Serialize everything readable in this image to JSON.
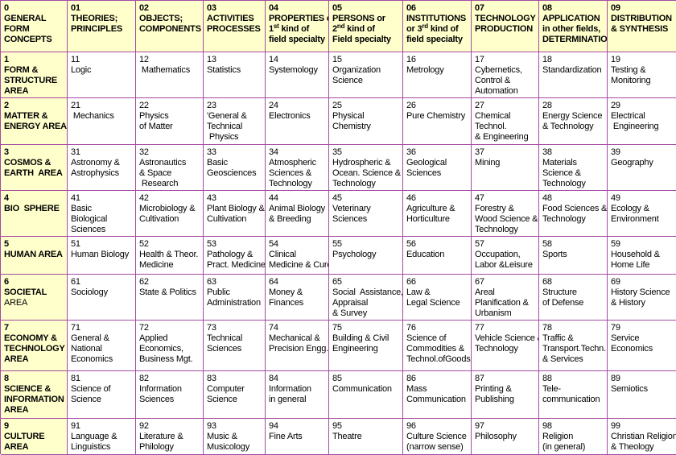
{
  "header": {
    "cells": [
      {
        "number": "0",
        "lines": [
          "GENERAL",
          "FORM",
          "CONCEPTS"
        ]
      },
      {
        "number": "01",
        "lines": [
          "THEORIES;",
          "PRINCIPLES"
        ]
      },
      {
        "number": "02",
        "lines": [
          "OBJECTS;",
          "COMPONENTS"
        ]
      },
      {
        "number": "03",
        "lines": [
          "ACTIVITIES",
          "PROCESSES"
        ]
      },
      {
        "number": "04",
        "lines": [
          "PROPERTIES or",
          {
            "base": "1",
            "sup": "st",
            "after": " kind of"
          },
          "field specialty"
        ]
      },
      {
        "number": "05",
        "lines": [
          "PERSONS or",
          {
            "base": "2",
            "sup": "nd",
            "after": " kind of"
          },
          "Field specialty"
        ]
      },
      {
        "number": "06",
        "lines": [
          "INSTITUTIONS",
          {
            "base": "or 3",
            "sup": "rd",
            "after": " kind of"
          },
          "field specialty"
        ]
      },
      {
        "number": "07",
        "lines": [
          "TECHNOLOGY &",
          "PRODUCTION"
        ]
      },
      {
        "number": "08",
        "lines": [
          "APPLICATION",
          "in other fields,",
          "DETERMINATION"
        ]
      },
      {
        "number": "09",
        "lines": [
          "DISTRIBUTION",
          "& SYNTHESIS"
        ]
      }
    ]
  },
  "rows": [
    {
      "label": {
        "number": "1",
        "lines": [
          "FORM &",
          "STRUCTURE",
          "AREA"
        ]
      },
      "cells": [
        {
          "number": "11",
          "lines": [
            "Logic"
          ]
        },
        {
          "number": "12",
          "lines": [
            " Mathematics"
          ]
        },
        {
          "number": "13",
          "lines": [
            "Statistics"
          ]
        },
        {
          "number": "14",
          "lines": [
            "Systemology"
          ]
        },
        {
          "number": "15",
          "lines": [
            "Organization",
            "Science"
          ]
        },
        {
          "number": "16",
          "lines": [
            "Metrology"
          ]
        },
        {
          "number": "17",
          "lines": [
            "Cybernetics,",
            "Control &",
            "Automation"
          ]
        },
        {
          "number": "18",
          "lines": [
            "Standardization"
          ]
        },
        {
          "number": "19",
          "lines": [
            "Testing &",
            "Monitoring"
          ]
        }
      ]
    },
    {
      "label": {
        "number": "2",
        "lines": [
          "MATTER &",
          "ENERGY AREA"
        ]
      },
      "cells": [
        {
          "number": "21",
          "lines": [
            " Mechanics"
          ]
        },
        {
          "number": "22",
          "lines": [
            "Physics",
            "of Matter"
          ]
        },
        {
          "number": "23",
          "lines": [
            "'General &",
            "Technical",
            " Physics"
          ]
        },
        {
          "number": "24",
          "lines": [
            "Electronics"
          ]
        },
        {
          "number": "25",
          "lines": [
            "Physical",
            "Chemistry"
          ]
        },
        {
          "number": "26",
          "lines": [
            "Pure Chemistry"
          ]
        },
        {
          "number": "27",
          "lines": [
            "Chemical",
            "Technol.",
            "& Engineering"
          ]
        },
        {
          "number": "28",
          "lines": [
            "Energy Science",
            "& Technology"
          ]
        },
        {
          "number": "29",
          "lines": [
            "Electrical",
            " Engineering"
          ]
        }
      ]
    },
    {
      "label": {
        "number": "3",
        "lines": [
          "COSMOS &",
          "EARTH  AREA"
        ]
      },
      "cells": [
        {
          "number": "31",
          "lines": [
            "Astronomy &",
            "Astrophysics"
          ]
        },
        {
          "number": "32",
          "lines": [
            "Astronautics",
            "& Space",
            " Research"
          ]
        },
        {
          "number": "33",
          "lines": [
            "Basic",
            "Geosciences"
          ]
        },
        {
          "number": "34",
          "lines": [
            "Atmospheric",
            "Sciences &",
            "Technology"
          ]
        },
        {
          "number": "35",
          "lines": [
            "Hydrospheric &",
            "Ocean. Science &",
            "Technology"
          ]
        },
        {
          "number": "36",
          "lines": [
            "Geological",
            "Sciences"
          ]
        },
        {
          "number": "37",
          "lines": [
            "Mining"
          ]
        },
        {
          "number": "38",
          "lines": [
            "Materials",
            "Science &",
            "Technology"
          ]
        },
        {
          "number": "39",
          "lines": [
            "Geography"
          ]
        }
      ]
    },
    {
      "label": {
        "number": "4",
        "lines": [
          "BIO  SPHERE"
        ]
      },
      "cells": [
        {
          "number": "41",
          "lines": [
            "Basic",
            "Biological",
            "Sciences"
          ]
        },
        {
          "number": "42",
          "lines": [
            "Microbiology &",
            "Cultivation"
          ]
        },
        {
          "number": "43",
          "lines": [
            "Plant Biology &",
            "Cultivation"
          ]
        },
        {
          "number": "44",
          "lines": [
            "Animal Biology",
            "& Breeding"
          ]
        },
        {
          "number": "45",
          "lines": [
            "Veterinary",
            "Sciences"
          ]
        },
        {
          "number": "46",
          "lines": [
            "Agriculture &",
            "Horticulture"
          ]
        },
        {
          "number": "47",
          "lines": [
            "Forestry &",
            "Wood Science &",
            "Technology"
          ]
        },
        {
          "number": "48",
          "lines": [
            "Food Sciences &",
            "Technology"
          ]
        },
        {
          "number": "49",
          "lines": [
            "Ecology &",
            "Environment"
          ]
        }
      ]
    },
    {
      "label": {
        "number": "5",
        "lines": [
          "HUMAN AREA"
        ]
      },
      "cells": [
        {
          "number": "51",
          "lines": [
            "Human Biology"
          ]
        },
        {
          "number": "52",
          "lines": [
            "Health & Theor.",
            "Medicine"
          ]
        },
        {
          "number": "53",
          "lines": [
            "Pathology &",
            "Pract. Medicine"
          ]
        },
        {
          "number": "54",
          "lines": [
            "Clinical",
            "Medicine & Cure"
          ]
        },
        {
          "number": "55",
          "lines": [
            "Psychology"
          ]
        },
        {
          "number": "56",
          "lines": [
            "Education"
          ]
        },
        {
          "number": "57",
          "lines": [
            "Occupation,",
            "Labor &Leisure"
          ]
        },
        {
          "number": "58",
          "lines": [
            "Sports"
          ]
        },
        {
          "number": "59",
          "lines": [
            "Household &",
            "Home Life"
          ]
        }
      ]
    },
    {
      "label": {
        "number": "6",
        "lines": [
          "SOCIETAL"
        ],
        "plain_lines": [
          "AREA"
        ]
      },
      "cells": [
        {
          "number": "61",
          "lines": [
            "Sociology"
          ]
        },
        {
          "number": "62",
          "lines": [
            "State & Politics"
          ]
        },
        {
          "number": "63",
          "lines": [
            "Public",
            "Administration"
          ]
        },
        {
          "number": "64",
          "lines": [
            "Money &",
            "Finances"
          ]
        },
        {
          "number": "65",
          "lines": [
            "Social  Assistance,",
            "Appraisal",
            "& Survey"
          ]
        },
        {
          "number": "66",
          "lines": [
            "Law &",
            "Legal Science"
          ]
        },
        {
          "number": "67",
          "lines": [
            "Areal",
            "Planification &",
            "Urbanism"
          ]
        },
        {
          "number": "68",
          "lines": [
            "Structure",
            "of Defense"
          ]
        },
        {
          "number": "69",
          "lines": [
            "History Science",
            "& History"
          ]
        }
      ]
    },
    {
      "label": {
        "number": "7",
        "lines": [
          "ECONOMY &",
          "TECHNOLOGY",
          "AREA"
        ]
      },
      "cells": [
        {
          "number": "71",
          "lines": [
            "General &",
            "National",
            "Economics"
          ]
        },
        {
          "number": "72",
          "lines": [
            "Applied",
            "Economics,",
            "Business Mgt."
          ]
        },
        {
          "number": "73",
          "lines": [
            "Technical",
            "Sciences"
          ]
        },
        {
          "number": "74",
          "lines": [
            "Mechanical &",
            "Precision Engg."
          ]
        },
        {
          "number": "75",
          "lines": [
            "Building & Civil",
            "Engineering"
          ]
        },
        {
          "number": "76",
          "lines": [
            "Science of",
            "Commodities &",
            "Technol.ofGoods"
          ]
        },
        {
          "number": "77",
          "lines": [
            "Vehicle Science &",
            "Technology"
          ]
        },
        {
          "number": "78",
          "lines": [
            "Traffic &",
            "Transport.Techn.",
            "& Services"
          ]
        },
        {
          "number": "79",
          "lines": [
            "Service",
            "Economics"
          ]
        }
      ]
    },
    {
      "label": {
        "number": "8",
        "lines": [
          "SCIENCE &",
          "INFORMATION",
          "AREA"
        ]
      },
      "cells": [
        {
          "number": "81",
          "lines": [
            "Science of",
            "Science"
          ]
        },
        {
          "number": "82",
          "lines": [
            "Information",
            "Sciences"
          ]
        },
        {
          "number": "83",
          "lines": [
            "Computer",
            "Science"
          ]
        },
        {
          "number": "84",
          "lines": [
            "Information",
            "in general"
          ]
        },
        {
          "number": "85",
          "lines": [
            "Communication"
          ]
        },
        {
          "number": "86",
          "lines": [
            "Mass",
            "Communication"
          ]
        },
        {
          "number": "87",
          "lines": [
            "Printing &",
            "Publishing"
          ]
        },
        {
          "number": "88",
          "lines": [
            "Tele-",
            "communication"
          ]
        },
        {
          "number": "89",
          "lines": [
            "Semiotics"
          ]
        }
      ]
    },
    {
      "label": {
        "number": "9",
        "lines": [
          "CULTURE",
          "AREA"
        ]
      },
      "cells": [
        {
          "number": "91",
          "lines": [
            "Language &",
            "Linguistics"
          ]
        },
        {
          "number": "92",
          "lines": [
            "Literature &",
            "Philology"
          ]
        },
        {
          "number": "93",
          "lines": [
            "Music &",
            "Musicology"
          ]
        },
        {
          "number": "94",
          "lines": [
            "Fine Arts"
          ]
        },
        {
          "number": "95",
          "lines": [
            "Theatre"
          ]
        },
        {
          "number": "96",
          "lines": [
            "Culture Science",
            "(narrow sense)"
          ]
        },
        {
          "number": "97",
          "lines": [
            "Philosophy"
          ]
        },
        {
          "number": "98",
          "lines": [
            "Religion",
            "(in general)"
          ]
        },
        {
          "number": "99",
          "lines": [
            "Christian Religion",
            "& Theology"
          ]
        }
      ]
    }
  ]
}
